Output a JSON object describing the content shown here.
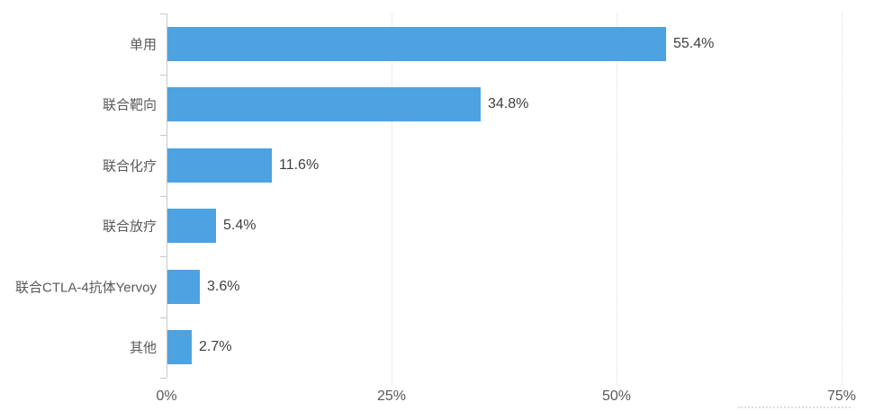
{
  "chart_data": {
    "type": "bar",
    "orientation": "horizontal",
    "title": "",
    "xlabel": "",
    "ylabel": "",
    "categories": [
      "单用",
      "联合靶向",
      "联合化疗",
      "联合放疗",
      "联合CTLA-4抗体Yervoy",
      "其他"
    ],
    "values": [
      55.4,
      34.8,
      11.6,
      5.4,
      3.6,
      2.7
    ],
    "value_labels": [
      "55.4%",
      "34.8%",
      "11.6%",
      "5.4%",
      "3.6%",
      "2.7%"
    ],
    "x_ticks": [
      {
        "value": 0,
        "label": "0%"
      },
      {
        "value": 25,
        "label": "25%"
      },
      {
        "value": 50,
        "label": "50%"
      },
      {
        "value": 75,
        "label": "75%"
      }
    ],
    "xlim": [
      0,
      78
    ],
    "grid": "vertical-dotted",
    "legend": "none",
    "colors": {
      "bar": "#4DA2E2",
      "gridline": "#DCDCDC",
      "axis": "#C8C8C8",
      "value_text": "#404040",
      "category_text": "#595959",
      "tick_text": "#595959",
      "background": "#FFFFFF"
    }
  }
}
